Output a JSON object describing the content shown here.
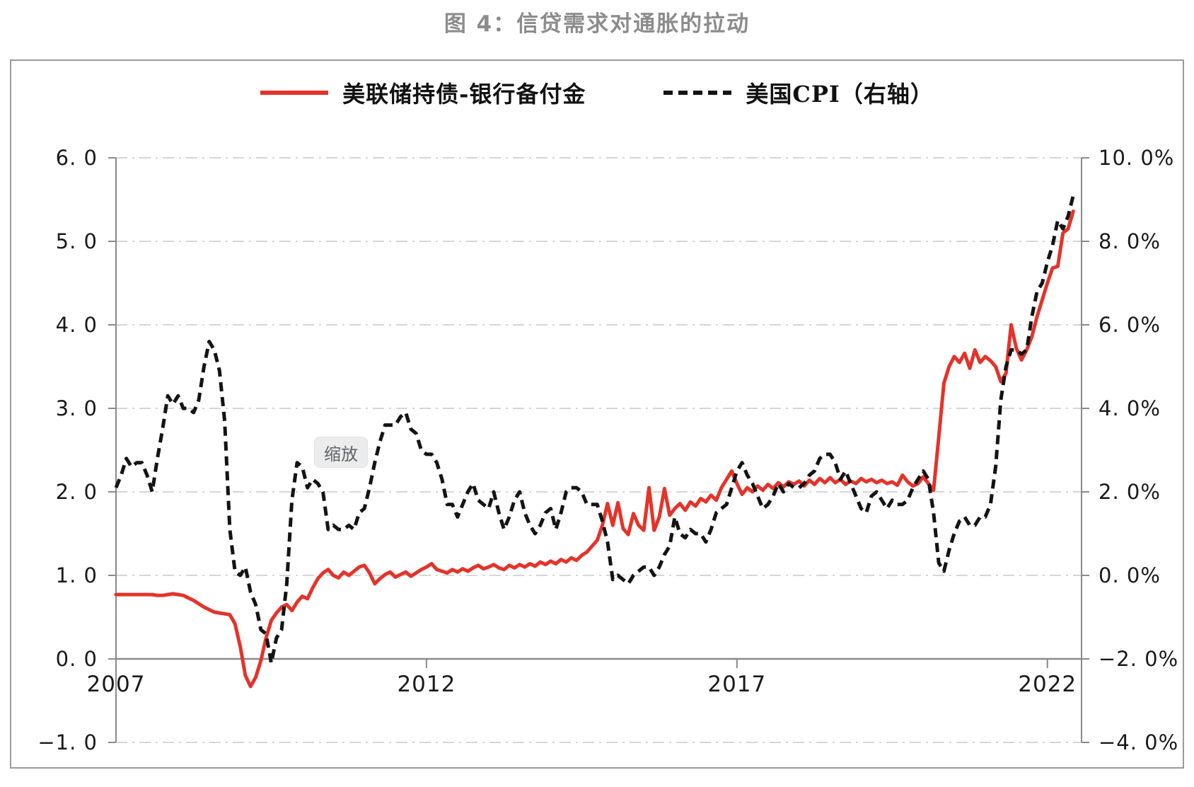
{
  "title": "图 4：信贷需求对通胀的拉动",
  "tooltip": {
    "label": "缩放"
  },
  "legend": [
    {
      "label": "美联储持债-银行备付金",
      "color": "#e5332a",
      "style": "solid"
    },
    {
      "label": "美国CPI（右轴）",
      "color": "#141414",
      "style": "dashed"
    }
  ],
  "colors": {
    "title_gray": "#8c8c8c",
    "axis_line": "#8a8a8a",
    "gridline": "#c9c9c9",
    "red_series": "#e5332a",
    "black_series": "#141414",
    "tooltip_bg": "#ececec"
  },
  "chart_data": {
    "type": "line",
    "title": "图 4：信贷需求对通胀的拉动",
    "x_start_year": 2007,
    "x_months_per_point": 1,
    "x_domain": [
      2007.0,
      2022.55
    ],
    "grid": "dash-dot horizontal",
    "legend_position": "top-center",
    "left_axis": {
      "min": -1.0,
      "max": 6.0,
      "ticks": [
        {
          "v": 6,
          "label": "6. 0"
        },
        {
          "v": 5,
          "label": "5. 0"
        },
        {
          "v": 4,
          "label": "4. 0"
        },
        {
          "v": 3,
          "label": "3. 0"
        },
        {
          "v": 2,
          "label": "2. 0"
        },
        {
          "v": 1,
          "label": "1. 0"
        },
        {
          "v": 0,
          "label": "0. 0"
        },
        {
          "v": -1,
          "label": "−1. 0"
        }
      ]
    },
    "right_axis": {
      "min": -4.0,
      "max": 10.0,
      "unit": "%",
      "ticks": [
        {
          "v": 10,
          "label": "10. 0%"
        },
        {
          "v": 8,
          "label": "8. 0%"
        },
        {
          "v": 6,
          "label": "6. 0%"
        },
        {
          "v": 4,
          "label": "4. 0%"
        },
        {
          "v": 2,
          "label": "2. 0%"
        },
        {
          "v": 0,
          "label": "0. 0%"
        },
        {
          "v": -2,
          "label": "−2. 0%"
        },
        {
          "v": -4,
          "label": "−4. 0%"
        }
      ]
    },
    "x_ticks": [
      {
        "t": 2007,
        "label": "2007"
      },
      {
        "t": 2012,
        "label": "2012"
      },
      {
        "t": 2017,
        "label": "2017"
      },
      {
        "t": 2022,
        "label": "2022"
      }
    ],
    "series": [
      {
        "name": "美联储持债-银行备付金",
        "axis": "left",
        "color": "#e5332a",
        "line_style": "solid",
        "values": [
          0.77,
          0.77,
          0.77,
          0.77,
          0.77,
          0.77,
          0.77,
          0.77,
          0.76,
          0.76,
          0.77,
          0.78,
          0.77,
          0.76,
          0.73,
          0.7,
          0.66,
          0.62,
          0.59,
          0.56,
          0.55,
          0.54,
          0.53,
          0.42,
          0.15,
          -0.2,
          -0.33,
          -0.22,
          -0.02,
          0.25,
          0.46,
          0.55,
          0.62,
          0.65,
          0.58,
          0.68,
          0.75,
          0.72,
          0.85,
          0.96,
          1.03,
          1.07,
          1.0,
          0.97,
          1.04,
          1.0,
          1.05,
          1.1,
          1.12,
          1.03,
          0.9,
          0.96,
          1.01,
          1.04,
          0.98,
          1.01,
          1.04,
          0.99,
          1.03,
          1.07,
          1.1,
          1.14,
          1.07,
          1.05,
          1.03,
          1.07,
          1.04,
          1.08,
          1.05,
          1.09,
          1.12,
          1.08,
          1.1,
          1.13,
          1.09,
          1.07,
          1.12,
          1.09,
          1.13,
          1.1,
          1.14,
          1.11,
          1.16,
          1.13,
          1.17,
          1.14,
          1.19,
          1.16,
          1.21,
          1.18,
          1.24,
          1.28,
          1.35,
          1.42,
          1.6,
          1.86,
          1.6,
          1.87,
          1.56,
          1.49,
          1.74,
          1.6,
          1.54,
          2.05,
          1.54,
          1.7,
          2.04,
          1.72,
          1.8,
          1.86,
          1.78,
          1.88,
          1.83,
          1.92,
          1.88,
          1.96,
          1.9,
          2.05,
          2.15,
          2.25,
          2.1,
          1.97,
          2.05,
          2.0,
          2.07,
          2.02,
          2.09,
          2.04,
          2.11,
          2.06,
          2.12,
          2.09,
          2.13,
          2.07,
          2.14,
          2.09,
          2.16,
          2.11,
          2.17,
          2.11,
          2.15,
          2.09,
          2.13,
          2.1,
          2.16,
          2.12,
          2.15,
          2.11,
          2.14,
          2.1,
          2.12,
          2.08,
          2.2,
          2.12,
          2.07,
          2.1,
          2.18,
          2.1,
          2.02,
          2.65,
          3.3,
          3.5,
          3.62,
          3.55,
          3.66,
          3.48,
          3.7,
          3.55,
          3.62,
          3.57,
          3.5,
          3.32,
          3.42,
          4.0,
          3.72,
          3.58,
          3.7,
          3.86,
          4.1,
          4.3,
          4.5,
          4.68,
          4.7,
          5.1,
          5.15,
          5.36
        ]
      },
      {
        "name": "美国CPI（右轴）",
        "axis": "right",
        "color": "#141414",
        "line_style": "dashed",
        "values": [
          2.1,
          2.4,
          2.8,
          2.6,
          2.7,
          2.7,
          2.4,
          2.0,
          2.8,
          3.5,
          4.3,
          4.1,
          4.3,
          4.0,
          4.0,
          3.9,
          4.2,
          5.0,
          5.6,
          5.4,
          4.9,
          3.7,
          1.1,
          0.1,
          0.0,
          0.2,
          -0.4,
          -0.7,
          -1.3,
          -1.4,
          -2.1,
          -1.5,
          -1.3,
          -0.2,
          1.8,
          2.7,
          2.6,
          2.1,
          2.3,
          2.2,
          2.0,
          1.1,
          1.2,
          1.1,
          1.1,
          1.2,
          1.1,
          1.5,
          1.6,
          2.1,
          2.7,
          3.2,
          3.6,
          3.6,
          3.6,
          3.8,
          3.9,
          3.5,
          3.4,
          3.0,
          2.9,
          2.9,
          2.7,
          2.3,
          1.7,
          1.7,
          1.4,
          1.7,
          2.0,
          2.2,
          1.8,
          1.7,
          1.6,
          2.0,
          1.5,
          1.1,
          1.4,
          1.8,
          2.0,
          1.5,
          1.2,
          1.0,
          1.2,
          1.5,
          1.6,
          1.1,
          1.5,
          2.0,
          2.1,
          2.1,
          2.0,
          1.7,
          1.7,
          1.7,
          1.3,
          0.8,
          -0.1,
          0.0,
          -0.1,
          -0.2,
          0.0,
          0.1,
          0.2,
          0.2,
          0.0,
          0.2,
          0.5,
          0.7,
          1.4,
          1.0,
          0.9,
          1.1,
          1.0,
          1.0,
          0.8,
          1.1,
          1.5,
          1.6,
          1.7,
          2.1,
          2.5,
          2.7,
          2.4,
          2.2,
          1.9,
          1.6,
          1.7,
          1.9,
          2.2,
          2.0,
          2.2,
          2.1,
          2.1,
          2.2,
          2.4,
          2.5,
          2.8,
          2.9,
          2.9,
          2.7,
          2.3,
          2.5,
          2.2,
          1.9,
          1.6,
          1.5,
          1.9,
          2.0,
          1.8,
          1.6,
          1.8,
          1.7,
          1.7,
          1.8,
          2.1,
          2.3,
          2.5,
          2.3,
          1.5,
          0.3,
          0.1,
          0.6,
          1.0,
          1.3,
          1.4,
          1.2,
          1.2,
          1.4,
          1.4,
          1.7,
          2.6,
          4.2,
          5.0,
          5.4,
          5.4,
          5.3,
          5.4,
          6.2,
          6.8,
          7.0,
          7.5,
          7.9,
          8.5,
          8.3,
          8.6,
          9.1
        ]
      }
    ]
  }
}
